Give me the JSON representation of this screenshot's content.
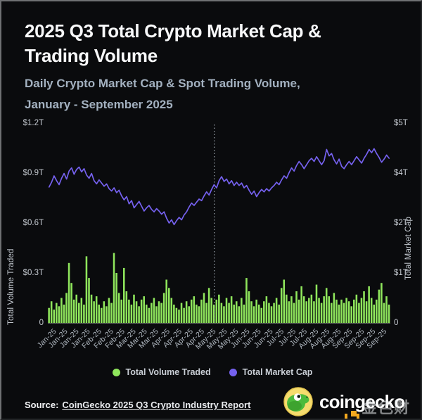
{
  "page": {
    "title_line1": "2025 Q3 Total Crypto Market Cap &",
    "title_line2": "Trading Volume",
    "subtitle_line1": "Daily Crypto Market Cap & Spot Trading Volume,",
    "subtitle_line2": "January - September 2025"
  },
  "chart_data": {
    "type": "bar+line dual-axis",
    "title": "2025 Q3 Total Crypto Market Cap & Trading Volume",
    "left_axis": {
      "title": "Total Volume Traded",
      "unit": "$T",
      "range": [
        0,
        1.2
      ],
      "tick_labels": [
        "$1.2T",
        "$0.9T",
        "$0.6T",
        "$0.3T",
        "0"
      ]
    },
    "right_axis": {
      "title": "Total Market Cap",
      "unit": "$T",
      "range": [
        0,
        5
      ],
      "tick_labels": [
        "$5T",
        "$4T",
        "$2T",
        "$1T",
        "0"
      ]
    },
    "x_tick_labels": [
      "Jan-25",
      "Jan-25",
      "Jan-25",
      "Jan-25",
      "Feb-25",
      "Feb-25",
      "Feb-25",
      "Mar-25",
      "Mar-25",
      "Mar-25",
      "Apr-25",
      "Apr-25",
      "Apr-25",
      "Apr-25",
      "May-25",
      "May-25",
      "May-25",
      "Jun-25",
      "Jun-25",
      "Jun-25",
      "Jul-25",
      "Jul-25",
      "Jul-25",
      "Aug-25",
      "Aug-25",
      "Aug-25",
      "Sep-25",
      "Sep-25",
      "Sep-25",
      "Sep-25"
    ],
    "grid": "off",
    "legend_position": "bottom",
    "annotations": {
      "dotted_vline_fraction": 0.486
    },
    "series": [
      {
        "name": "Total Volume Traded",
        "type": "bar",
        "axis": "left",
        "color": "#8fe65c",
        "values": [
          0.09,
          0.13,
          0.08,
          0.12,
          0.1,
          0.15,
          0.11,
          0.18,
          0.36,
          0.24,
          0.14,
          0.17,
          0.12,
          0.15,
          0.11,
          0.4,
          0.27,
          0.17,
          0.13,
          0.16,
          0.11,
          0.09,
          0.13,
          0.1,
          0.15,
          0.12,
          0.42,
          0.3,
          0.18,
          0.14,
          0.33,
          0.19,
          0.14,
          0.11,
          0.17,
          0.13,
          0.1,
          0.14,
          0.16,
          0.11,
          0.09,
          0.12,
          0.15,
          0.1,
          0.13,
          0.12,
          0.18,
          0.26,
          0.21,
          0.15,
          0.11,
          0.09,
          0.08,
          0.12,
          0.09,
          0.13,
          0.1,
          0.14,
          0.16,
          0.11,
          0.1,
          0.14,
          0.18,
          0.12,
          0.21,
          0.15,
          0.11,
          0.14,
          0.17,
          0.12,
          0.1,
          0.15,
          0.12,
          0.16,
          0.11,
          0.13,
          0.1,
          0.15,
          0.11,
          0.27,
          0.19,
          0.13,
          0.1,
          0.14,
          0.11,
          0.09,
          0.13,
          0.16,
          0.12,
          0.1,
          0.12,
          0.15,
          0.11,
          0.21,
          0.26,
          0.17,
          0.13,
          0.16,
          0.12,
          0.19,
          0.14,
          0.22,
          0.16,
          0.13,
          0.15,
          0.17,
          0.13,
          0.23,
          0.15,
          0.12,
          0.16,
          0.21,
          0.16,
          0.12,
          0.18,
          0.14,
          0.11,
          0.14,
          0.12,
          0.15,
          0.13,
          0.1,
          0.14,
          0.17,
          0.12,
          0.15,
          0.19,
          0.13,
          0.22,
          0.15,
          0.11,
          0.14,
          0.2,
          0.24,
          0.12,
          0.16,
          0.11
        ]
      },
      {
        "name": "Total Market Cap",
        "type": "line",
        "axis": "right",
        "color": "#7561ee",
        "values": [
          3.4,
          3.52,
          3.68,
          3.56,
          3.46,
          3.62,
          3.74,
          3.6,
          3.8,
          3.88,
          3.72,
          3.84,
          3.9,
          3.78,
          3.86,
          3.7,
          3.62,
          3.74,
          3.56,
          3.48,
          3.58,
          3.5,
          3.42,
          3.48,
          3.36,
          3.3,
          3.38,
          3.26,
          3.32,
          3.18,
          3.08,
          3.16,
          2.98,
          3.06,
          2.88,
          2.96,
          3.04,
          2.92,
          2.8,
          2.88,
          2.94,
          2.84,
          2.78,
          2.86,
          2.8,
          2.72,
          2.78,
          2.62,
          2.5,
          2.58,
          2.46,
          2.56,
          2.64,
          2.58,
          2.7,
          2.78,
          2.9,
          3.0,
          2.94,
          3.02,
          3.1,
          3.06,
          3.18,
          3.28,
          3.2,
          3.34,
          3.46,
          3.38,
          3.56,
          3.66,
          3.54,
          3.6,
          3.48,
          3.56,
          3.44,
          3.52,
          3.44,
          3.5,
          3.38,
          3.44,
          3.32,
          3.22,
          3.3,
          3.16,
          3.26,
          3.34,
          3.28,
          3.36,
          3.3,
          3.38,
          3.44,
          3.52,
          3.46,
          3.58,
          3.68,
          3.62,
          3.76,
          3.88,
          3.8,
          3.94,
          4.04,
          3.96,
          3.86,
          3.96,
          4.06,
          4.12,
          4.04,
          4.16,
          4.06,
          3.96,
          4.06,
          4.34,
          4.18,
          4.24,
          4.08,
          3.98,
          4.1,
          3.92,
          3.86,
          3.96,
          4.04,
          3.96,
          4.06,
          4.16,
          4.08,
          4.0,
          4.12,
          4.22,
          4.34,
          4.26,
          4.36,
          4.24,
          4.14,
          4.02,
          4.1,
          4.2,
          4.12
        ]
      }
    ]
  },
  "legend": {
    "items": [
      {
        "label": "Total Volume Traded",
        "color": "#8fe65c"
      },
      {
        "label": "Total Market Cap",
        "color": "#7561ee"
      }
    ]
  },
  "footer": {
    "source_label": "Source:",
    "source_link": "CoinGecko 2025 Q3 Crypto Industry Report",
    "brand": "coingecko",
    "watermark": "金色财经"
  },
  "colors": {
    "background": "#0a0b0d",
    "title": "#f7f8f9",
    "subtitle": "#a3b1c0",
    "axis_text": "#c7ccd3",
    "volume_bar": "#8fe65c",
    "market_cap_line": "#7561ee",
    "divider_dotted_line": "#98a1a8",
    "watermark_orange": "#f3a81f",
    "gecko_yellow": "#f5dc6e",
    "gecko_green": "#4cbb3c"
  }
}
